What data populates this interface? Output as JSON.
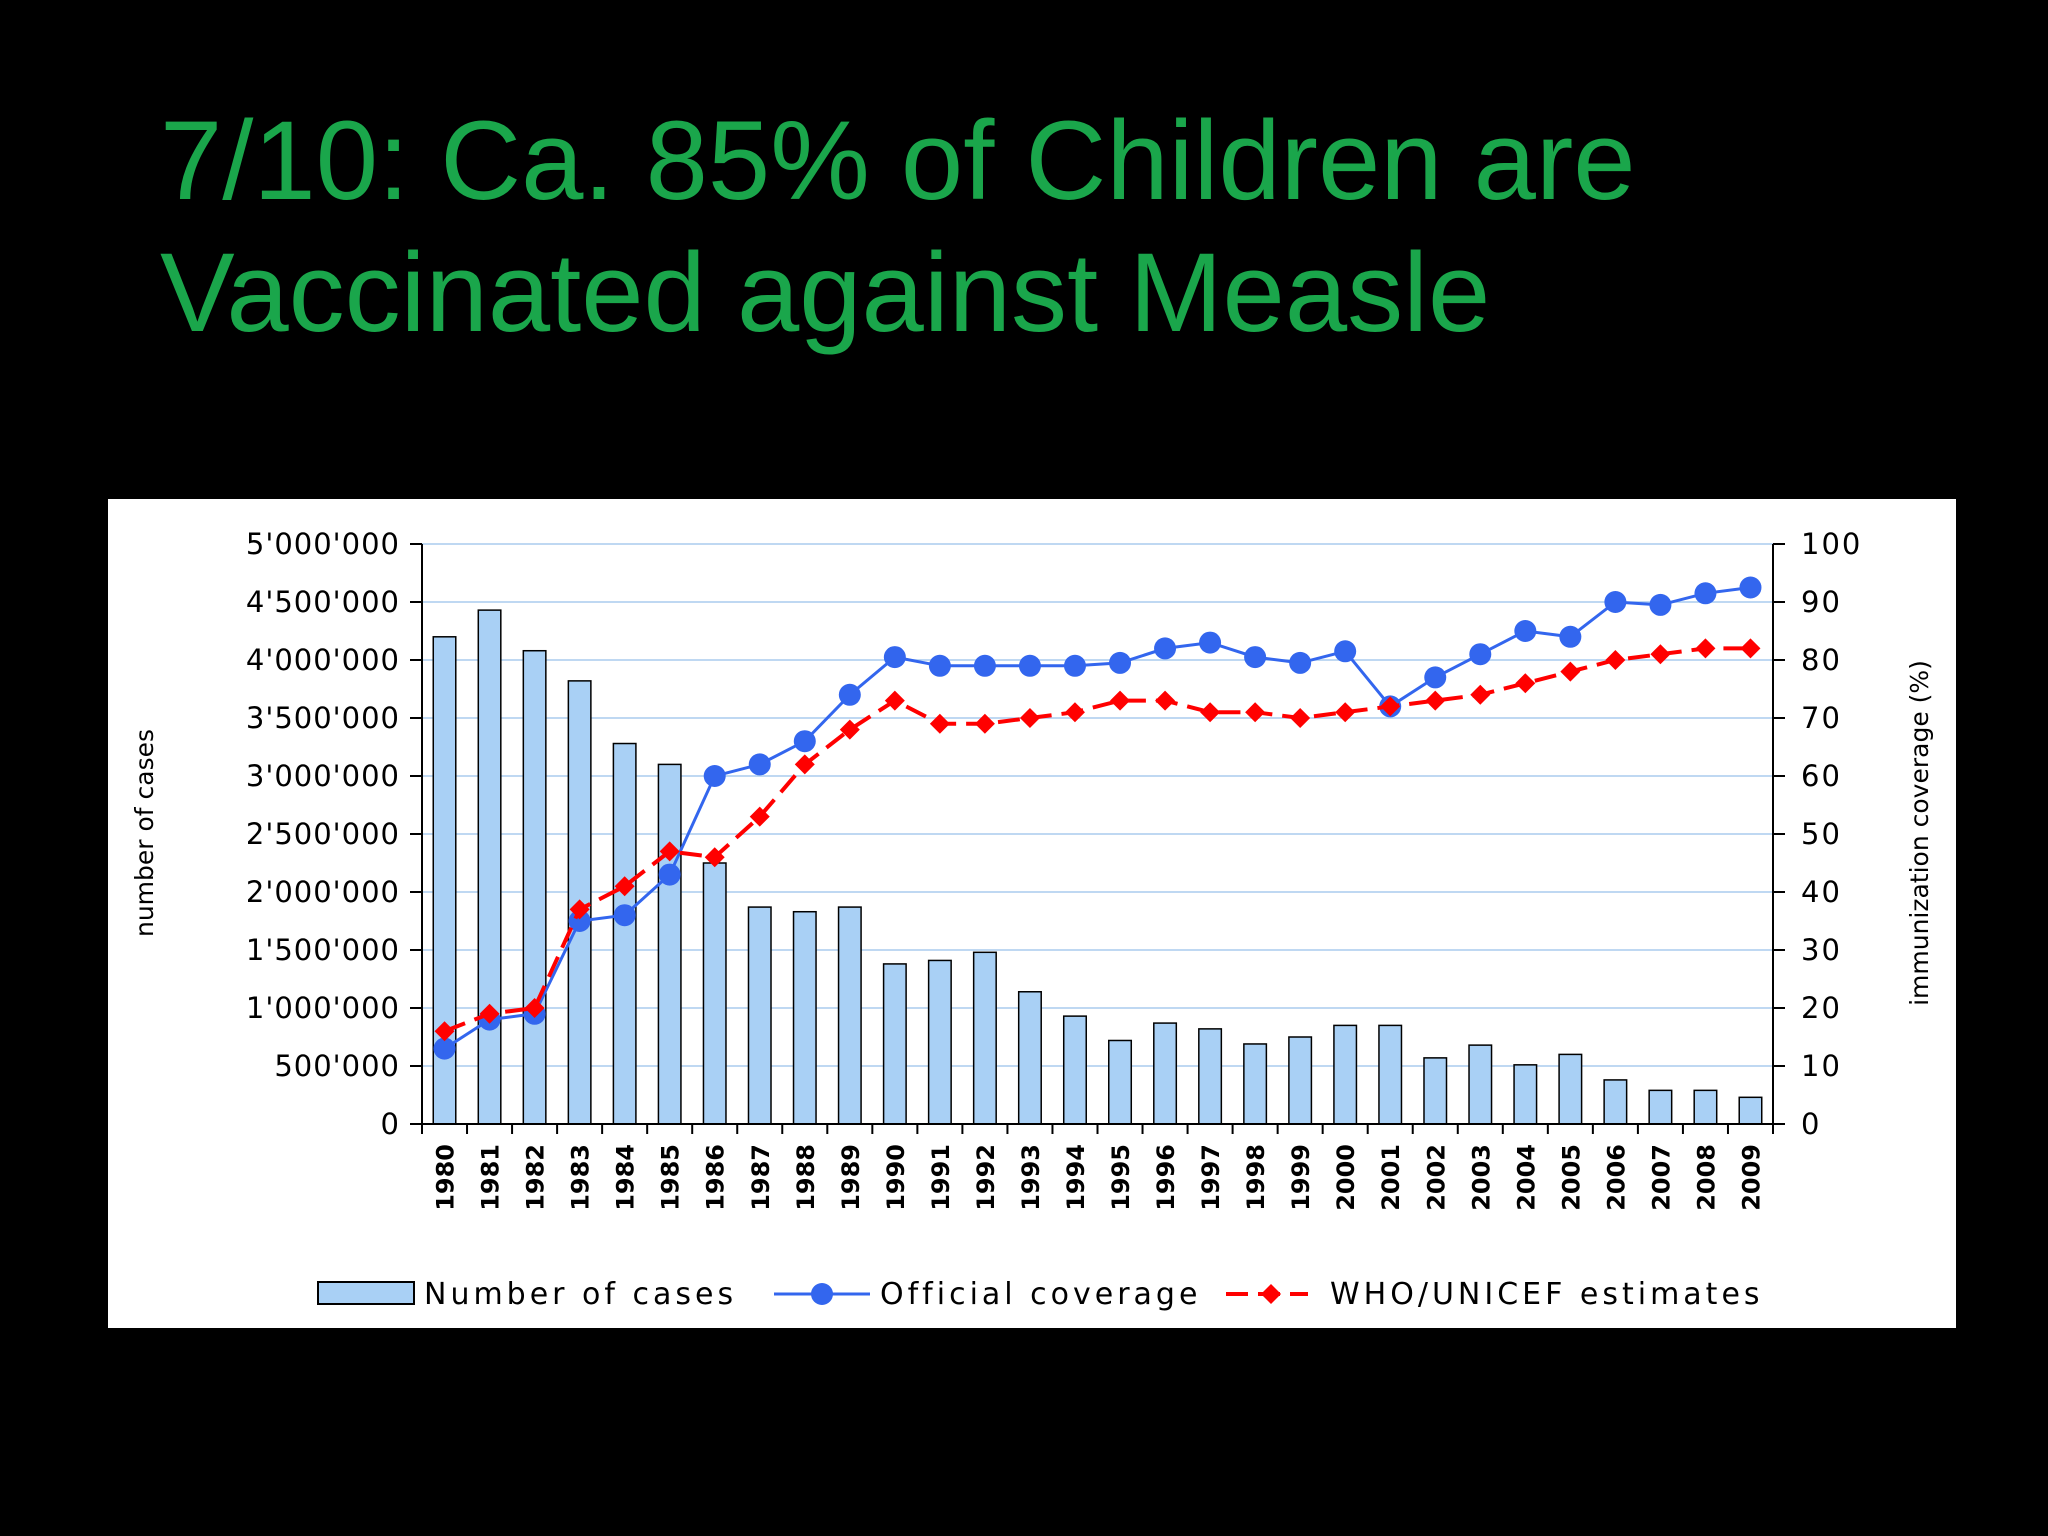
{
  "slide": {
    "title_line1": "7/10: Ca. 85% of Children are",
    "title_line2": "Vaccinated against Measle"
  },
  "colors": {
    "background": "#000000",
    "title": "#1aa64b",
    "bars_fill": "#a9d0f5",
    "bars_stroke": "#000000",
    "official": "#3366ee",
    "who": "#ff0000",
    "grid": "#aaccee"
  },
  "chart_data": {
    "type": "bar+line",
    "categories": [
      "1980",
      "1981",
      "1982",
      "1983",
      "1984",
      "1985",
      "1986",
      "1987",
      "1988",
      "1989",
      "1990",
      "1991",
      "1992",
      "1993",
      "1994",
      "1995",
      "1996",
      "1997",
      "1998",
      "1999",
      "2000",
      "2001",
      "2002",
      "2003",
      "2004",
      "2005",
      "2006",
      "2007",
      "2008",
      "2009"
    ],
    "ylabel_left": "number of cases",
    "ylabel_right": "immunization coverage (%)",
    "ylim_left": [
      0,
      5000000
    ],
    "ylim_right": [
      0,
      100
    ],
    "yticks_left": [
      "0",
      "500'000",
      "1'000'000",
      "1'500'000",
      "2'000'000",
      "2'500'000",
      "3'000'000",
      "3'500'000",
      "4'000'000",
      "4'500'000",
      "5'000'000"
    ],
    "yticks_right": [
      "0",
      "10",
      "20",
      "30",
      "40",
      "50",
      "60",
      "70",
      "80",
      "90",
      "100"
    ],
    "grid": true,
    "legend_position": "bottom",
    "series": [
      {
        "name": "Number of cases",
        "type": "bar",
        "axis": "left",
        "values": [
          4200000,
          4430000,
          4080000,
          3820000,
          3280000,
          3100000,
          2250000,
          1870000,
          1830000,
          1870000,
          1380000,
          1410000,
          1480000,
          1140000,
          930000,
          720000,
          870000,
          820000,
          690000,
          750000,
          850000,
          850000,
          570000,
          680000,
          510000,
          600000,
          380000,
          290000,
          290000,
          230000
        ]
      },
      {
        "name": "Official coverage",
        "type": "line",
        "axis": "right",
        "values": [
          13,
          18,
          19,
          35,
          36,
          43,
          60,
          62,
          66,
          74,
          80.5,
          79,
          79,
          79,
          79,
          79.5,
          82,
          83,
          80.5,
          79.5,
          81.5,
          72,
          77,
          81,
          85,
          84,
          90,
          89.5,
          91.5,
          92.5
        ]
      },
      {
        "name": "WHO/UNICEF estimates",
        "type": "line",
        "axis": "right",
        "values": [
          16,
          19,
          20,
          37,
          41,
          47,
          46,
          53,
          62,
          68,
          73,
          69,
          69,
          70,
          71,
          73,
          73,
          71,
          71,
          70,
          71,
          72,
          73,
          74,
          76,
          78,
          80,
          81,
          82,
          82
        ]
      }
    ]
  }
}
